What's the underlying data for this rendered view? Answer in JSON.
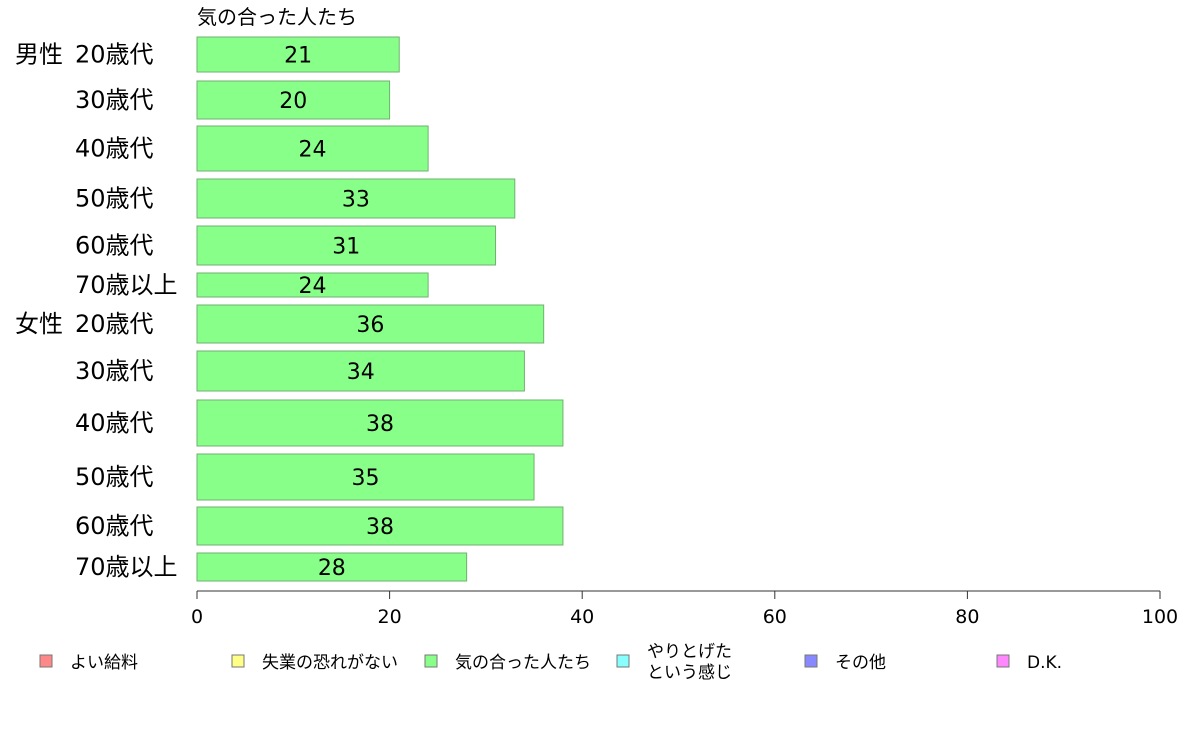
{
  "chart_data": {
    "type": "bar",
    "orientation": "horizontal",
    "title": "気の合った人たち",
    "xlim": [
      0,
      100
    ],
    "x_ticks": [
      0,
      20,
      40,
      60,
      80,
      100
    ],
    "grid": false,
    "legend_position": "bottom",
    "categories": [
      {
        "group": "男性",
        "label": "20歳代",
        "value": 21
      },
      {
        "group": "",
        "label": "30歳代",
        "value": 20
      },
      {
        "group": "",
        "label": "40歳代",
        "value": 24
      },
      {
        "group": "",
        "label": "50歳代",
        "value": 33
      },
      {
        "group": "",
        "label": "60歳代",
        "value": 31
      },
      {
        "group": "",
        "label": "70歳以上",
        "value": 24
      },
      {
        "group": "女性",
        "label": "20歳代",
        "value": 36
      },
      {
        "group": "",
        "label": "30歳代",
        "value": 34
      },
      {
        "group": "",
        "label": "40歳代",
        "value": 38
      },
      {
        "group": "",
        "label": "50歳代",
        "value": 35
      },
      {
        "group": "",
        "label": "60歳代",
        "value": 38
      },
      {
        "group": "",
        "label": "70歳以上",
        "value": 28
      }
    ],
    "bar_color": "#88ff88",
    "legend": [
      {
        "name": "よい給料",
        "color": "#ff8888"
      },
      {
        "name": "失業の恐れがない",
        "color": "#ffff88"
      },
      {
        "name": "気の合った人たち",
        "color": "#88ff88"
      },
      {
        "name": "やりとげた\nという感じ",
        "color": "#88ffff"
      },
      {
        "name": "その他",
        "color": "#8888ff"
      },
      {
        "name": "D.K.",
        "color": "#ff88ff"
      }
    ]
  }
}
